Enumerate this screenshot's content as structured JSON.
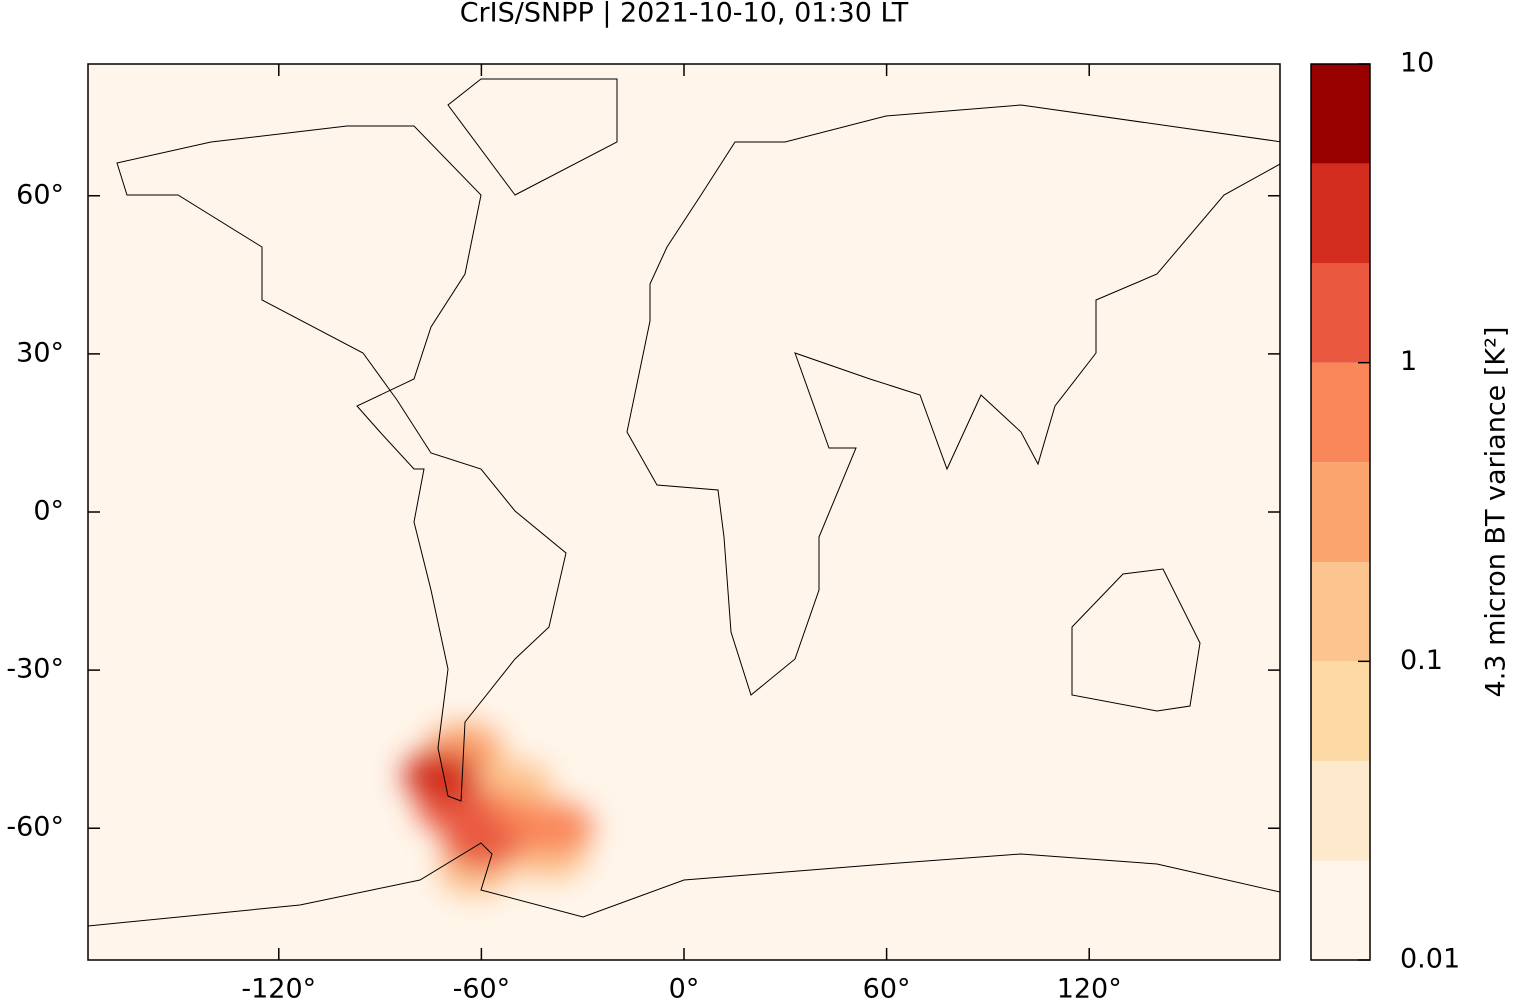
{
  "chart_data": {
    "type": "map",
    "title": "CrIS/SNPP | 2021-10-10, 01:30 LT",
    "xlim": [
      -176.5,
      176.5
    ],
    "ylim": [
      -85,
      85
    ],
    "xticks": [
      {
        "value": -120,
        "label": "-120°"
      },
      {
        "value": -60,
        "label": "-60°"
      },
      {
        "value": 0,
        "label": "0°"
      },
      {
        "value": 60,
        "label": "60°"
      },
      {
        "value": 120,
        "label": "120°"
      }
    ],
    "yticks": [
      {
        "value": -60,
        "label": "-60°"
      },
      {
        "value": -30,
        "label": "-30°"
      },
      {
        "value": 0,
        "label": "0°"
      },
      {
        "value": 30,
        "label": "30°"
      },
      {
        "value": 60,
        "label": "60°"
      }
    ],
    "points": {
      "lon": [
        -72,
        -68,
        -60,
        -45,
        -55,
        -50,
        -65,
        -40,
        -38,
        -62
      ],
      "lat": [
        -50,
        -56,
        -63,
        -60,
        -58,
        -52,
        -45,
        -65,
        -60,
        -68
      ],
      "values": [
        3,
        1.5,
        2,
        0.8,
        0.5,
        0.15,
        0.3,
        0.1,
        0.6,
        0.2
      ]
    },
    "colorbar": {
      "label": "4.3 micron BT variance [K²]",
      "log": true,
      "lim": [
        0.01,
        10
      ],
      "ticks": [
        0.01,
        0.1,
        1,
        10
      ],
      "levels": [
        0.01,
        0.0215,
        0.0464,
        0.1,
        0.215,
        0.464,
        1,
        2.15,
        4.64,
        10
      ],
      "colors": [
        "#fff5ea",
        "#fde9cc",
        "#fcd9a5",
        "#fcc58f",
        "#fca46d",
        "#f9875a",
        "#e9583f",
        "#d22d1e",
        "#990000"
      ]
    }
  }
}
